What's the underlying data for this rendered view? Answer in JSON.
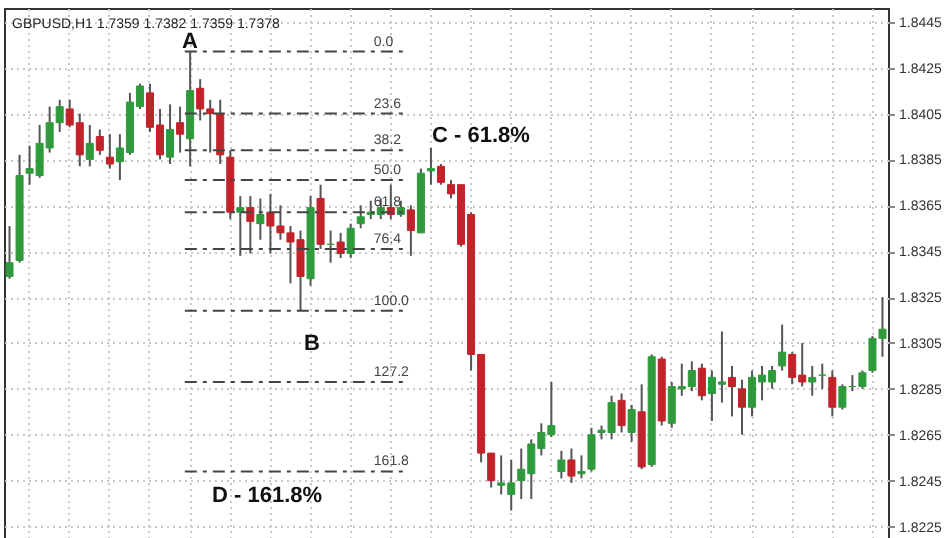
{
  "chart_data": {
    "type": "candlestick",
    "title": "GBPUSD,H1  1.7359 1.7382 1.7359 1.7378",
    "categories": [
      null,
      null,
      null,
      null,
      null,
      null,
      null,
      null,
      null,
      null,
      null,
      null,
      null,
      null,
      null,
      null,
      null,
      null,
      null,
      null,
      null,
      null,
      null,
      null,
      null,
      null,
      null,
      null,
      null,
      null,
      null,
      null,
      null,
      null,
      null,
      null,
      null,
      null,
      null,
      null,
      null,
      null,
      null,
      null,
      null,
      null,
      null,
      null,
      null,
      null,
      null,
      null,
      null,
      null,
      null,
      null,
      null,
      null,
      null,
      null,
      null,
      null,
      null,
      null,
      null,
      null,
      null,
      null,
      null,
      null,
      null,
      null,
      null,
      null,
      null,
      null,
      null,
      null,
      null,
      null,
      null,
      null,
      null,
      null,
      null,
      null,
      null,
      null
    ],
    "ohlc": [
      [
        1.8334,
        1.8356,
        1.8333,
        1.834
      ],
      [
        1.8341,
        1.8387,
        1.834,
        1.8378
      ],
      [
        1.8379,
        1.8391,
        1.8374,
        1.8381
      ],
      [
        1.8378,
        1.84,
        1.8377,
        1.8392
      ],
      [
        1.839,
        1.8408,
        1.8388,
        1.8401
      ],
      [
        1.8401,
        1.8411,
        1.8397,
        1.8408
      ],
      [
        1.8407,
        1.8411,
        1.8399,
        1.84
      ],
      [
        1.8401,
        1.8405,
        1.8382,
        1.8387
      ],
      [
        1.8385,
        1.84,
        1.8382,
        1.8392
      ],
      [
        1.8395,
        1.8398,
        1.8387,
        1.8389
      ],
      [
        1.8386,
        1.8396,
        1.8381,
        1.8383
      ],
      [
        1.8384,
        1.8396,
        1.8376,
        1.839
      ],
      [
        1.8388,
        1.8414,
        1.8387,
        1.841
      ],
      [
        1.8408,
        1.8418,
        1.8407,
        1.8417
      ],
      [
        1.8414,
        1.8418,
        1.8397,
        1.8399
      ],
      [
        1.84,
        1.8407,
        1.8385,
        1.8387
      ],
      [
        1.8386,
        1.8409,
        1.8383,
        1.8398
      ],
      [
        1.8401,
        1.8408,
        1.8388,
        1.8396
      ],
      [
        1.8394,
        1.8432,
        1.8382,
        1.8415
      ],
      [
        1.8416,
        1.842,
        1.8402,
        1.8407
      ],
      [
        1.8407,
        1.8411,
        1.8388,
        1.8405
      ],
      [
        1.8405,
        1.8411,
        1.8383,
        1.8387
      ],
      [
        1.8386,
        1.8389,
        1.8359,
        1.8362
      ],
      [
        1.8362,
        1.8369,
        1.8343,
        1.8364
      ],
      [
        1.8364,
        1.8369,
        1.8344,
        1.8358
      ],
      [
        1.8357,
        1.8368,
        1.835,
        1.8361
      ],
      [
        1.8362,
        1.837,
        1.8344,
        1.8356
      ],
      [
        1.8356,
        1.8365,
        1.835,
        1.8353
      ],
      [
        1.8353,
        1.8356,
        1.8331,
        1.8349
      ],
      [
        1.835,
        1.8354,
        1.8319,
        1.8334
      ],
      [
        1.8333,
        1.8369,
        1.833,
        1.8364
      ],
      [
        1.8368,
        1.8374,
        1.8346,
        1.8348
      ],
      [
        1.8348,
        1.8354,
        1.834,
        1.8348
      ],
      [
        1.8349,
        1.8353,
        1.8342,
        1.8344
      ],
      [
        1.8344,
        1.8357,
        1.8342,
        1.8355
      ],
      [
        1.8357,
        1.8365,
        1.8355,
        1.836
      ],
      [
        1.8361,
        1.8367,
        1.8359,
        1.8362
      ],
      [
        1.8361,
        1.8368,
        1.8359,
        1.8364
      ],
      [
        1.8364,
        1.8374,
        1.8359,
        1.8361
      ],
      [
        1.8361,
        1.8367,
        1.836,
        1.8364
      ],
      [
        1.8363,
        1.8365,
        1.8343,
        1.8354
      ],
      [
        1.8353,
        1.8381,
        1.8353,
        1.8379
      ],
      [
        1.838,
        1.839,
        1.8374,
        1.8381
      ],
      [
        1.8382,
        1.8383,
        1.8374,
        1.8375
      ],
      [
        1.8374,
        1.8376,
        1.8368,
        1.837
      ],
      [
        1.8374,
        1.8374,
        1.8347,
        1.8348
      ],
      [
        1.8361,
        1.8362,
        1.8293,
        1.83
      ],
      [
        1.83,
        1.83,
        1.8253,
        1.8257
      ],
      [
        1.8257,
        1.8257,
        1.8242,
        1.8245
      ],
      [
        1.8243,
        1.8256,
        1.8239,
        1.8244
      ],
      [
        1.8239,
        1.8254,
        1.8232,
        1.8244
      ],
      [
        1.8245,
        1.8259,
        1.8237,
        1.825
      ],
      [
        1.8248,
        1.8263,
        1.8237,
        1.8261
      ],
      [
        1.8259,
        1.827,
        1.8256,
        1.8266
      ],
      [
        1.8265,
        1.8288,
        1.8264,
        1.8269
      ],
      [
        1.8249,
        1.8258,
        1.8246,
        1.8254
      ],
      [
        1.8254,
        1.8259,
        1.8244,
        1.8247
      ],
      [
        1.8248,
        1.8256,
        1.8246,
        1.8249
      ],
      [
        1.825,
        1.8268,
        1.8249,
        1.8265
      ],
      [
        1.8266,
        1.8269,
        1.8263,
        1.8267
      ],
      [
        1.8266,
        1.8282,
        1.8263,
        1.8279
      ],
      [
        1.828,
        1.8283,
        1.8266,
        1.8269
      ],
      [
        1.8266,
        1.8278,
        1.8262,
        1.8276
      ],
      [
        1.8275,
        1.8287,
        1.825,
        1.8251
      ],
      [
        1.8252,
        1.83,
        1.8251,
        1.8299
      ],
      [
        1.8298,
        1.8299,
        1.8269,
        1.8271
      ],
      [
        1.827,
        1.8288,
        1.8268,
        1.8286
      ],
      [
        1.8285,
        1.8296,
        1.8282,
        1.8286
      ],
      [
        1.8286,
        1.8297,
        1.8284,
        1.8293
      ],
      [
        1.8294,
        1.8296,
        1.828,
        1.8282
      ],
      [
        1.8283,
        1.8293,
        1.8271,
        1.829
      ],
      [
        1.8287,
        1.831,
        1.8279,
        1.8288
      ],
      [
        1.829,
        1.8295,
        1.8273,
        1.8286
      ],
      [
        1.8285,
        1.8289,
        1.8265,
        1.8277
      ],
      [
        1.8277,
        1.8293,
        1.8273,
        1.829
      ],
      [
        1.8288,
        1.8295,
        1.828,
        1.8291
      ],
      [
        1.8288,
        1.8295,
        1.8285,
        1.8293
      ],
      [
        1.8295,
        1.8313,
        1.8293,
        1.8301
      ],
      [
        1.83,
        1.8301,
        1.8287,
        1.829
      ],
      [
        1.8291,
        1.8305,
        1.8286,
        1.8288
      ],
      [
        1.8288,
        1.8295,
        1.8282,
        1.829
      ],
      [
        1.8291,
        1.8296,
        1.8285,
        1.8291
      ],
      [
        1.829,
        1.8293,
        1.8273,
        1.8277
      ],
      [
        1.8277,
        1.8287,
        1.8276,
        1.8286
      ],
      [
        1.8286,
        1.8291,
        1.8284,
        1.8286
      ],
      [
        1.8286,
        1.8293,
        1.8285,
        1.8292
      ],
      [
        1.8293,
        1.8308,
        1.8292,
        1.8307
      ],
      [
        1.8307,
        1.8325,
        1.8299,
        1.8311
      ]
    ],
    "colors": [
      "#2f9a3c",
      "#2f9a3c",
      "#2f9a3c",
      "#2f9a3c",
      "#2f9a3c",
      "#2f9a3c",
      "#c2222a",
      "#c2222a",
      "#2f9a3c",
      "#c2222a",
      "#c2222a",
      "#2f9a3c",
      "#2f9a3c",
      "#2f9a3c",
      "#c2222a",
      "#c2222a",
      "#2f9a3c",
      "#c2222a",
      "#2f9a3c",
      "#c2222a",
      "#c2222a",
      "#c2222a",
      "#c2222a",
      "#2f9a3c",
      "#c2222a",
      "#2f9a3c",
      "#c2222a",
      "#c2222a",
      "#c2222a",
      "#c2222a",
      "#2f9a3c",
      "#c2222a",
      "#2f9a3c",
      "#c2222a",
      "#2f9a3c",
      "#2f9a3c",
      "#2f9a3c",
      "#2f9a3c",
      "#c2222a",
      "#2f9a3c",
      "#c2222a",
      "#2f9a3c",
      "#2f9a3c",
      "#c2222a",
      "#c2222a",
      "#c2222a",
      "#c2222a",
      "#c2222a",
      "#c2222a",
      "#2f9a3c",
      "#2f9a3c",
      "#2f9a3c",
      "#2f9a3c",
      "#2f9a3c",
      "#2f9a3c",
      "#2f9a3c",
      "#c2222a",
      "#2f9a3c",
      "#2f9a3c",
      "#2f9a3c",
      "#2f9a3c",
      "#c2222a",
      "#2f9a3c",
      "#c2222a",
      "#2f9a3c",
      "#c2222a",
      "#2f9a3c",
      "#2f9a3c",
      "#2f9a3c",
      "#c2222a",
      "#2f9a3c",
      "#2f9a3c",
      "#c2222a",
      "#c2222a",
      "#2f9a3c",
      "#2f9a3c",
      "#2f9a3c",
      "#2f9a3c",
      "#c2222a",
      "#c2222a",
      "#2f9a3c",
      "#2f9a3c",
      "#c2222a",
      "#2f9a3c",
      "#2f9a3c",
      "#2f9a3c",
      "#2f9a3c",
      "#2f9a3c"
    ],
    "ylim": [
      1.822,
      1.8451
    ],
    "yticks": [
      1.8225,
      1.8245,
      1.8265,
      1.8285,
      1.8305,
      1.8325,
      1.8345,
      1.8365,
      1.8385,
      1.8405,
      1.8425,
      1.8445
    ],
    "ref_lines": [
      {
        "axis": "y",
        "value": 1.8432,
        "line_style": "dashed"
      },
      {
        "axis": "y",
        "value": 1.8405,
        "line_style": "dashed"
      },
      {
        "axis": "y",
        "value": 1.8389,
        "line_style": "dashed"
      },
      {
        "axis": "y",
        "value": 1.8376,
        "line_style": "dashed"
      },
      {
        "axis": "y",
        "value": 1.8362,
        "line_style": "dashed"
      },
      {
        "axis": "y",
        "value": 1.8346,
        "line_style": "dashed"
      },
      {
        "axis": "y",
        "value": 1.8319,
        "line_style": "dashed"
      },
      {
        "axis": "y",
        "value": 1.8288,
        "line_style": "dashed"
      },
      {
        "axis": "y",
        "value": 1.8249,
        "line_style": "dashed"
      }
    ],
    "annotations": [
      "A",
      "B",
      "C - 61.8%",
      "D - 161.8%",
      {
        "text": "0.0",
        "y": 1.8432
      },
      {
        "text": "23.6",
        "y": 1.8405
      },
      {
        "text": "38.2",
        "y": 1.8389
      },
      {
        "text": "50.0",
        "y": 1.8376
      },
      {
        "text": "61.8",
        "y": 1.8362
      },
      {
        "text": "76.4",
        "y": 1.8346
      },
      {
        "text": "100.0",
        "y": 1.8319
      },
      {
        "text": "127.2",
        "y": 1.8288
      },
      {
        "text": "161.8",
        "y": 1.8249
      }
    ],
    "grid": true,
    "tick_labels": "y"
  }
}
